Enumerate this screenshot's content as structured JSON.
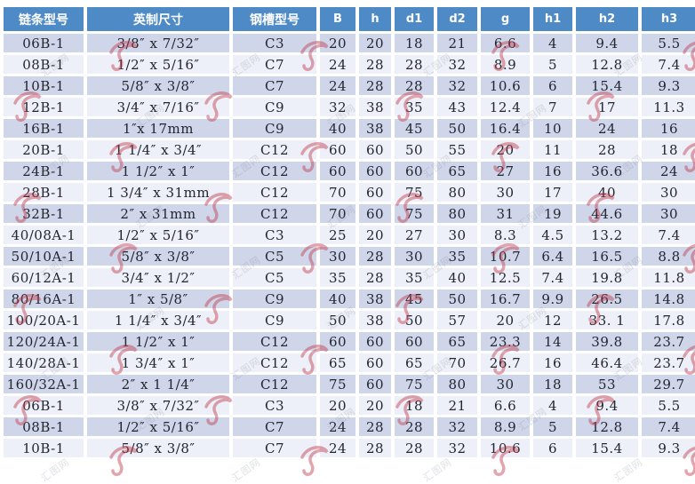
{
  "colors": {
    "header_bg": "#4e8ac6",
    "header_text": "#ffffff",
    "row_dark": "#cfd6e9",
    "row_light": "#edf0f8",
    "cell_text": "#22262f",
    "watermark_red": "#c0394b",
    "watermark_gray": "#6d7488"
  },
  "watermark": {
    "text": "汇图网"
  },
  "chart_data": {
    "type": "table",
    "columns": [
      "链条型号",
      "英制尺寸",
      "钢槽型号",
      "B",
      "h",
      "d1",
      "d2",
      "g",
      "h1",
      "h2",
      "h3"
    ],
    "rows": [
      [
        "06B-1",
        "3/8″ x 7/32″",
        "C3",
        "20",
        "20",
        "18",
        "21",
        "6.6",
        "4",
        "9.4",
        "5.5"
      ],
      [
        "08B-1",
        "1/2″ x 5/16″",
        "C7",
        "24",
        "28",
        "28",
        "32",
        "8.9",
        "5",
        "12.8",
        "7.4"
      ],
      [
        "10B-1",
        "5/8″ x 3/8″",
        "C7",
        "24",
        "28",
        "28",
        "32",
        "10.6",
        "6",
        "15.4",
        "9.3"
      ],
      [
        "12B-1",
        "3/4″ x 7/16″",
        "C9",
        "32",
        "38",
        "35",
        "43",
        "12.4",
        "7",
        "17",
        "11.3"
      ],
      [
        "16B-1",
        "1″x 17mm",
        "C9",
        "40",
        "38",
        "45",
        "50",
        "16.4",
        "10",
        "24",
        "16"
      ],
      [
        "20B-1",
        "1 1/4″ x 3/4″",
        "C12",
        "60",
        "60",
        "50",
        "55",
        "20",
        "11",
        "28",
        "18"
      ],
      [
        "24B-1",
        "1 1/2″ x 1″",
        "C12",
        "60",
        "60",
        "60",
        "65",
        "27",
        "16",
        "36.6",
        "24"
      ],
      [
        "28B-1",
        "1 3/4″ x 31mm",
        "C12",
        "70",
        "60",
        "75",
        "80",
        "30",
        "17",
        "40",
        "30"
      ],
      [
        "32B-1",
        "2″ x 31mm",
        "C12",
        "70",
        "60",
        "75",
        "80",
        "31",
        "19",
        "44.6",
        "30"
      ],
      [
        "40/08A-1",
        "1/2″ x 5/16″",
        "C3",
        "25",
        "20",
        "27",
        "30",
        "8.3",
        "4.5",
        "13.2",
        "7.4"
      ],
      [
        "50/10A-1",
        "5/8″ x 3/8″",
        "C5",
        "30",
        "28",
        "30",
        "35",
        "10.7",
        "6.4",
        "16.5",
        "8.8"
      ],
      [
        "60/12A-1",
        "3/4″ x 1/2″",
        "C5",
        "35",
        "28",
        "35",
        "40",
        "12.5",
        "7.4",
        "19.8",
        "11.8"
      ],
      [
        "80/16A-1",
        "1″ x 5/8″",
        "C9",
        "40",
        "38",
        "45",
        "50",
        "16.7",
        "9.9",
        "26.5",
        "14.8"
      ],
      [
        "100/20A-1",
        "1 1/4″ x 3/4″",
        "C9",
        "50",
        "38",
        "50",
        "57",
        "20",
        "12",
        "33. 1",
        "17.8"
      ],
      [
        "120/24A-1",
        "1 1/2″ x 1″",
        "C12",
        "60",
        "60",
        "60",
        "65",
        "23.3",
        "14",
        "39.8",
        "23.7"
      ],
      [
        "140/28A-1",
        "1 3/4″ x 1″",
        "C12",
        "65",
        "60",
        "65",
        "70",
        "26.7",
        "16",
        "46.4",
        "23.7"
      ],
      [
        "160/32A-1",
        "2″ x 1 1/4″",
        "C12",
        "75",
        "60",
        "75",
        "80",
        "30",
        "18",
        "53",
        "29.7"
      ],
      [
        "06B-1",
        "3/8″ x 7/32″",
        "C3",
        "20",
        "20",
        "18",
        "21",
        "6.6",
        "4",
        "9.4",
        "5.5"
      ],
      [
        "08B-1",
        "1/2″ x 5/16″",
        "C7",
        "24",
        "28",
        "28",
        "32",
        "8.9",
        "5",
        "12.8",
        "7.4"
      ],
      [
        "10B-1",
        "5/8″ x 3/8″",
        "C7",
        "24",
        "28",
        "28",
        "32",
        "10.6",
        "6",
        "15.4",
        "9.3"
      ]
    ]
  }
}
